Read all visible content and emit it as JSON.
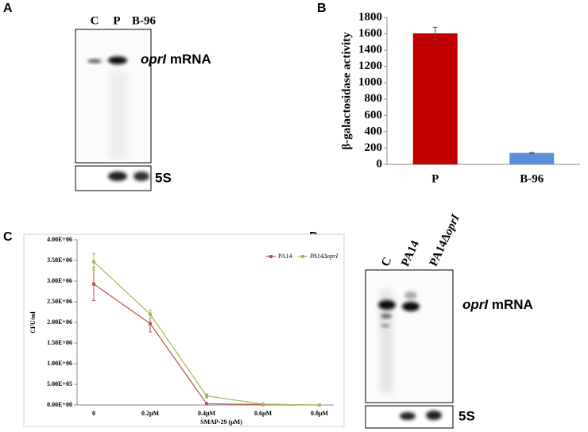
{
  "panel_labels": [
    "A",
    "B",
    "C",
    "D"
  ],
  "blot_a": {
    "lanes": [
      "C",
      "P",
      "B-96"
    ],
    "band_label": {
      "italic": "oprI",
      "text": " mRNA"
    },
    "loading_label": "5S"
  },
  "blot_d": {
    "lanes": [
      "C",
      "PA14",
      {
        "text": "PA14Δ",
        "italic": "oprI"
      }
    ],
    "band_label": {
      "italic": "oprI",
      "text": " mRNA"
    },
    "loading_label": "5S"
  },
  "chart_data": [
    {
      "type": "bar",
      "y_label": "β-galactosidase activity",
      "categories": [
        "P",
        "B-96"
      ],
      "values": [
        1605,
        140
      ],
      "errors": [
        75,
        5
      ],
      "colors": [
        "#c00000",
        "#5b8fd8"
      ],
      "ylim": [
        0,
        1800
      ],
      "yticks": [
        0,
        200,
        400,
        600,
        800,
        1000,
        1200,
        1400,
        1600,
        1800
      ],
      "grid": false
    },
    {
      "type": "line",
      "x_label": "SMAP-29 (μM)",
      "y_label": "CFU/ml",
      "categories": [
        "0",
        "0.2μM",
        "0.4μM",
        "0.6μM",
        "0.8μM"
      ],
      "series": [
        {
          "name": "PA14",
          "color": "#c0504d",
          "values": [
            2930000,
            1970000,
            30000,
            10000,
            0
          ],
          "errors": [
            400000,
            200000,
            10000,
            5000,
            0
          ]
        },
        {
          "name": "PA14ΔoprI",
          "color": "#9bbb59",
          "values": [
            3470000,
            2200000,
            220000,
            20000,
            0
          ],
          "errors": [
            200000,
            100000,
            50000,
            10000,
            0
          ]
        }
      ],
      "ylim": [
        0,
        4000000
      ],
      "yticks": [
        {
          "value": 0,
          "label": "0.00E+00"
        },
        {
          "value": 500000,
          "label": "5.00E+05"
        },
        {
          "value": 1000000,
          "label": "1.00E+06"
        },
        {
          "value": 1500000,
          "label": "1.50E+06"
        },
        {
          "value": 2000000,
          "label": "2.00E+06"
        },
        {
          "value": 2500000,
          "label": "2.50E+06"
        },
        {
          "value": 3000000,
          "label": "3.00E+06"
        },
        {
          "value": 3500000,
          "label": "3.50E+06"
        },
        {
          "value": 4000000,
          "label": "4.00E+06"
        }
      ],
      "grid": false,
      "legend": "upper right"
    }
  ]
}
